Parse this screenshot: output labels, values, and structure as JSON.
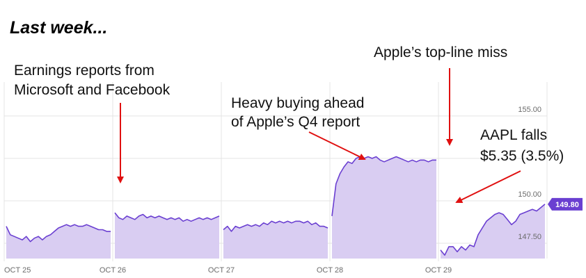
{
  "page_title": "Last week...",
  "colors": {
    "line": "#6a3fd1",
    "fill": "#d9cdf2",
    "grid": "#e4e4e4",
    "arrow": "#e01010",
    "badge": "#6a3fd1"
  },
  "annotations": [
    {
      "id": "earnings",
      "lines": [
        "Earnings reports from",
        "Microsoft and Facebook"
      ]
    },
    {
      "id": "buying",
      "lines": [
        "Heavy buying ahead",
        "of Apple’s  Q4 report"
      ]
    },
    {
      "id": "miss",
      "lines": [
        "Apple’s top-line miss"
      ]
    },
    {
      "id": "falls",
      "lines": [
        "AAPL falls",
        "$5.35 (3.5%)"
      ]
    }
  ],
  "last_price_label": "149.80",
  "chart_data": {
    "type": "area",
    "title": "",
    "xlabel": "",
    "ylabel": "",
    "ylim": [
      146.6,
      157.0
    ],
    "grid": true,
    "yticks": [
      {
        "value": 155.0,
        "label": "155.00"
      },
      {
        "value": 152.5,
        "label": ""
      },
      {
        "value": 150.0,
        "label": "150.00"
      },
      {
        "value": 147.5,
        "label": "147.50"
      }
    ],
    "xticks": [
      "OCT 25",
      "OCT 26",
      "OCT 27",
      "OCT 28",
      "OCT 29"
    ],
    "sessions": [
      {
        "label": "OCT 25",
        "values": [
          148.5,
          148.0,
          147.9,
          147.8,
          147.7,
          147.9,
          147.6,
          147.8,
          147.9,
          147.7,
          147.9,
          148.0,
          148.2,
          148.4,
          148.5,
          148.6,
          148.5,
          148.6,
          148.5,
          148.5,
          148.6,
          148.5,
          148.4,
          148.3,
          148.3,
          148.2,
          148.2
        ]
      },
      {
        "label": "OCT 26",
        "values": [
          149.3,
          149.0,
          148.9,
          149.1,
          149.0,
          148.9,
          149.1,
          149.2,
          149.0,
          149.1,
          149.0,
          149.1,
          149.0,
          148.9,
          149.0,
          148.9,
          149.0,
          148.8,
          148.9,
          148.8,
          148.9,
          149.0,
          148.9,
          149.0,
          148.9,
          149.0,
          149.1
        ]
      },
      {
        "label": "OCT 27",
        "values": [
          148.3,
          148.5,
          148.2,
          148.5,
          148.4,
          148.5,
          148.6,
          148.5,
          148.6,
          148.5,
          148.7,
          148.6,
          148.8,
          148.7,
          148.8,
          148.7,
          148.8,
          148.7,
          148.8,
          148.8,
          148.7,
          148.8,
          148.6,
          148.7,
          148.5,
          148.5,
          148.4
        ]
      },
      {
        "label": "OCT 28",
        "values": [
          149.1,
          151.0,
          151.6,
          152.0,
          152.3,
          152.2,
          152.5,
          152.6,
          152.5,
          152.6,
          152.5,
          152.6,
          152.4,
          152.3,
          152.4,
          152.5,
          152.6,
          152.5,
          152.4,
          152.3,
          152.4,
          152.3,
          152.4,
          152.4,
          152.3,
          152.4,
          152.4
        ]
      },
      {
        "label": "OCT 29",
        "values": [
          147.1,
          146.8,
          147.3,
          147.3,
          147.0,
          147.3,
          147.1,
          147.4,
          147.3,
          148.0,
          148.4,
          148.8,
          149.0,
          149.2,
          149.3,
          149.2,
          148.9,
          148.6,
          148.8,
          149.2,
          149.3,
          149.4,
          149.5,
          149.4,
          149.6,
          149.8
        ]
      }
    ],
    "last_value": 149.8,
    "events": [
      {
        "label": "Earnings reports from Microsoft and Facebook",
        "session": "OCT 26"
      },
      {
        "label": "Heavy buying ahead of Apple’s Q4 report",
        "session": "OCT 28"
      },
      {
        "label": "Apple’s top-line miss",
        "session": "OCT 28"
      },
      {
        "label": "AAPL falls $5.35 (3.5%)",
        "session": "OCT 29"
      }
    ]
  }
}
